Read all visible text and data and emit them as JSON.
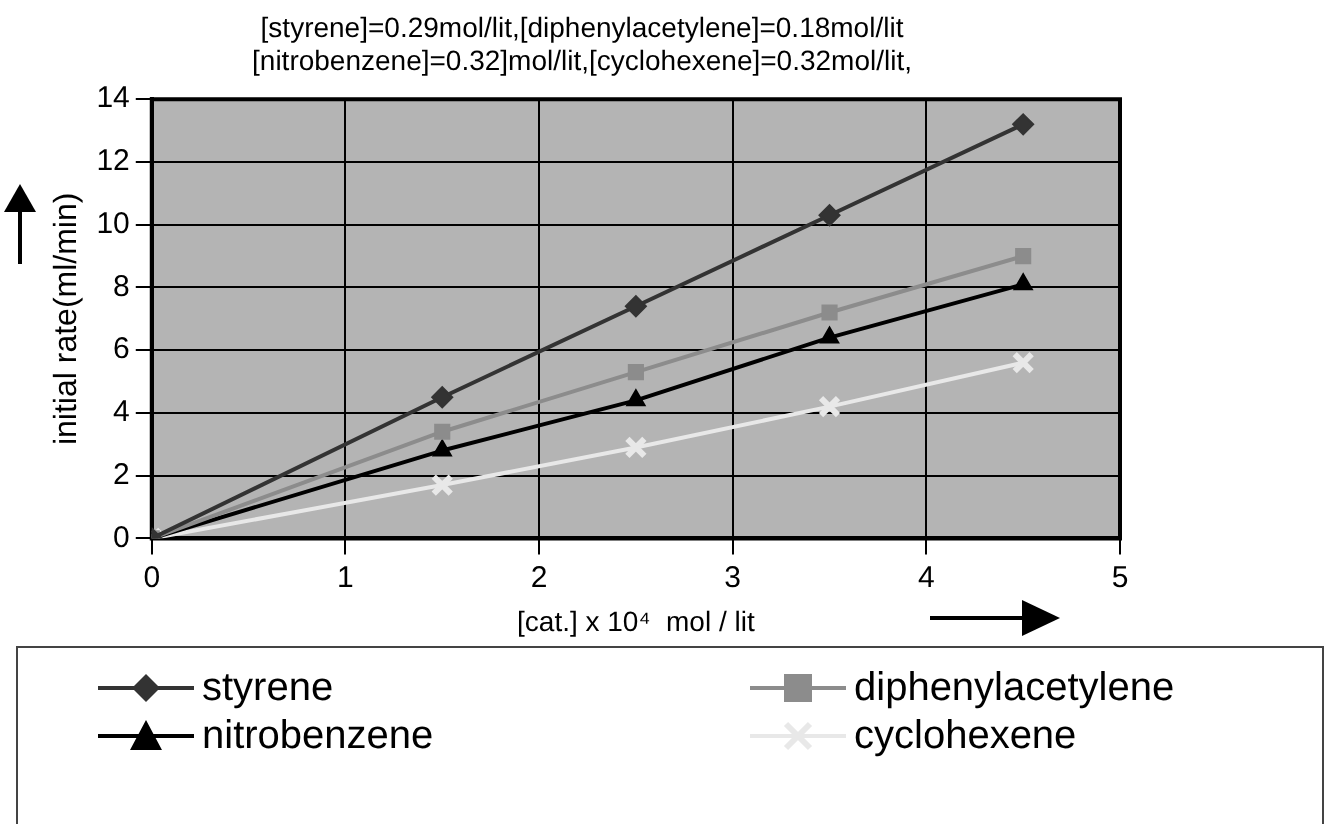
{
  "chart_data": {
    "type": "line",
    "title": "[styrene]=0.29mol/lit,[diphenylacetylene]=0.18mol/lit\n[nitrobenzene]=0.32]mol/lit,[cyclohexene]=0.32mol/lit,",
    "xlabel": "[cat.] x 10⁴  mol / lit",
    "ylabel": "initial rate(ml/min)",
    "x": [
      0,
      1.5,
      2.5,
      3.5,
      4.5
    ],
    "series": [
      {
        "name": "styrene",
        "color": "#333333",
        "marker": "diamond",
        "values": [
          0,
          4.5,
          7.4,
          10.3,
          13.2
        ]
      },
      {
        "name": "diphenylacetylene",
        "color": "#8c8c8c",
        "marker": "square",
        "values": [
          0,
          3.4,
          5.3,
          7.2,
          9.0
        ]
      },
      {
        "name": "nitrobenzene",
        "color": "#000000",
        "marker": "triangle",
        "values": [
          0,
          2.8,
          4.4,
          6.4,
          8.1
        ]
      },
      {
        "name": "cyclohexene",
        "color": "#e8e8e8",
        "marker": "cross",
        "values": [
          0,
          1.7,
          2.9,
          4.2,
          5.6
        ]
      }
    ],
    "xlim": [
      0,
      5
    ],
    "xticks": [
      0,
      1,
      2,
      3,
      4,
      5
    ],
    "ylim": [
      0,
      14
    ],
    "yticks": [
      0,
      2,
      4,
      6,
      8,
      10,
      12,
      14
    ],
    "grid": true,
    "legend": "bottom"
  }
}
